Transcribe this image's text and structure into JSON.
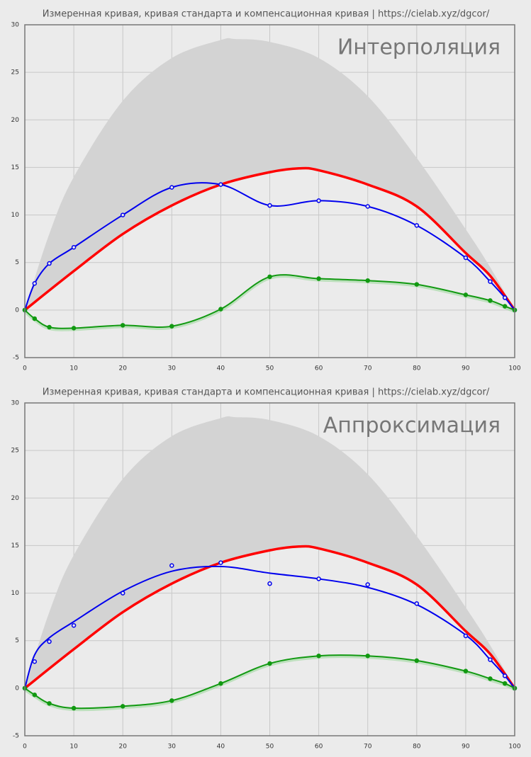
{
  "chart_data": [
    {
      "type": "line",
      "title": "Измеренная кривая, кривая стандарта и компенсационная кривая | https://cielab.xyz/dgcor/",
      "annotation": "Интерполяция",
      "xlim": [
        0,
        100
      ],
      "xticks": [
        0,
        10,
        20,
        30,
        40,
        50,
        60,
        70,
        80,
        90,
        100
      ],
      "ylim": [
        -5,
        30
      ],
      "yticks": [
        -5,
        0,
        5,
        10,
        15,
        20,
        25,
        30
      ],
      "grid": true,
      "series": [
        {
          "kind": "area",
          "color": "#d3d3d3",
          "x": [
            0,
            5,
            10,
            20,
            30,
            40,
            43,
            50,
            60,
            70,
            80,
            90,
            95,
            100
          ],
          "values": [
            0,
            8,
            14,
            22,
            26.5,
            28.4,
            28.5,
            28.2,
            26.5,
            22.5,
            16,
            8.5,
            4.5,
            0
          ]
        },
        {
          "kind": "line",
          "color": "#ff0000",
          "width": 3.5,
          "x": [
            0,
            10,
            20,
            30,
            40,
            50,
            56,
            60,
            70,
            80,
            90,
            95,
            100
          ],
          "values": [
            0,
            4.1,
            8,
            11,
            13.2,
            14.5,
            14.9,
            14.7,
            13.2,
            10.9,
            6,
            3.6,
            0
          ]
        },
        {
          "kind": "line",
          "color": "#0000ee",
          "width": 2,
          "markers": "hollow",
          "x": [
            0,
            2,
            5,
            10,
            20,
            30,
            40,
            50,
            60,
            70,
            80,
            90,
            95,
            98,
            100
          ],
          "values": [
            0,
            2.8,
            4.9,
            6.6,
            10,
            12.9,
            13.2,
            11,
            11.5,
            10.9,
            8.9,
            5.5,
            3,
            1.3,
            0
          ]
        },
        {
          "kind": "line",
          "color": "#119911",
          "width": 2,
          "markers": "filled",
          "x": [
            0,
            2,
            5,
            10,
            20,
            30,
            40,
            50,
            60,
            70,
            80,
            90,
            95,
            98,
            100
          ],
          "values": [
            0,
            -0.9,
            -1.8,
            -1.9,
            -1.6,
            -1.7,
            0.1,
            3.5,
            3.3,
            3.1,
            2.7,
            1.6,
            1,
            0.4,
            0
          ]
        }
      ]
    },
    {
      "type": "line",
      "title": "Измеренная кривая, кривая стандарта и компенсационная кривая | https://cielab.xyz/dgcor/",
      "annotation": "Аппроксимация",
      "xlim": [
        0,
        100
      ],
      "xticks": [
        0,
        10,
        20,
        30,
        40,
        50,
        60,
        70,
        80,
        90,
        100
      ],
      "ylim": [
        -5,
        30
      ],
      "yticks": [
        -5,
        0,
        5,
        10,
        15,
        20,
        25,
        30
      ],
      "grid": true,
      "series": [
        {
          "kind": "area",
          "color": "#d3d3d3",
          "x": [
            0,
            5,
            10,
            20,
            30,
            40,
            43,
            50,
            60,
            70,
            80,
            90,
            95,
            100
          ],
          "values": [
            0,
            8,
            14,
            22,
            26.5,
            28.4,
            28.5,
            28.2,
            26.5,
            22.5,
            16,
            8.5,
            4.5,
            0
          ]
        },
        {
          "kind": "line",
          "color": "#ff0000",
          "width": 3.5,
          "x": [
            0,
            10,
            20,
            30,
            40,
            50,
            56,
            60,
            70,
            80,
            90,
            95,
            100
          ],
          "values": [
            0,
            4.1,
            8,
            11,
            13.2,
            14.5,
            14.9,
            14.7,
            13.2,
            10.9,
            6,
            3.6,
            0
          ]
        },
        {
          "kind": "line",
          "color": "#0000ee",
          "width": 2,
          "x": [
            0,
            2,
            5,
            10,
            20,
            30,
            40,
            50,
            60,
            70,
            80,
            90,
            95,
            98,
            100
          ],
          "values": [
            0,
            3.5,
            5.3,
            7,
            10.2,
            12.3,
            12.8,
            12.1,
            11.5,
            10.6,
            8.8,
            5.6,
            3,
            1.3,
            0
          ]
        },
        {
          "kind": "points",
          "color": "#0000ee",
          "markers": "hollow",
          "x": [
            0,
            2,
            5,
            10,
            20,
            30,
            40,
            50,
            60,
            70,
            80,
            90,
            95,
            98,
            100
          ],
          "values": [
            0,
            2.8,
            4.9,
            6.6,
            10,
            12.9,
            13.2,
            11,
            11.5,
            10.9,
            8.9,
            5.5,
            3,
            1.3,
            0
          ]
        },
        {
          "kind": "line",
          "color": "#119911",
          "width": 2,
          "markers": "filled",
          "x": [
            0,
            2,
            5,
            10,
            20,
            30,
            40,
            50,
            60,
            70,
            80,
            90,
            95,
            98,
            100
          ],
          "values": [
            0,
            -0.7,
            -1.6,
            -2.1,
            -1.9,
            -1.3,
            0.5,
            2.6,
            3.4,
            3.4,
            2.9,
            1.8,
            1,
            0.5,
            0
          ]
        }
      ]
    }
  ]
}
